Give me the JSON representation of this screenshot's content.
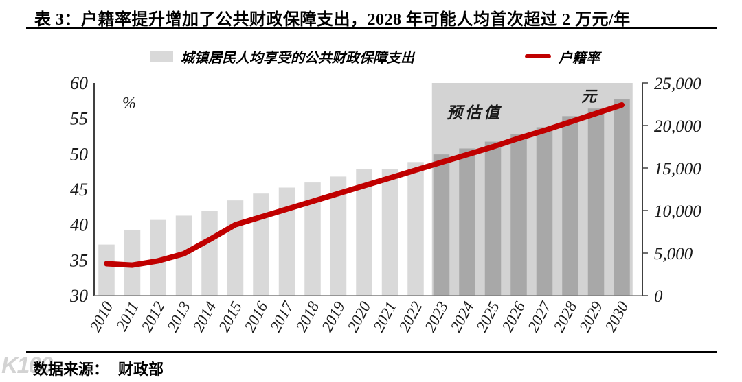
{
  "page": {
    "title": "表 3：户籍率提升增加了公共财政保障支出，2028 年可能人均首次超过 2 万元/年"
  },
  "legend": {
    "bar_label": "城镇居民人均享受的公共财政保障支出",
    "line_label": "户籍率"
  },
  "annotations": {
    "left_unit": "%",
    "right_unit": "元",
    "forecast_label": "预估值"
  },
  "footer": {
    "source_label": "数据来源：",
    "source_value": "财政部"
  },
  "watermark": {
    "logo": "K100"
  },
  "chart_data": {
    "type": "bar",
    "title": "表 3：户籍率提升增加了公共财政保障支出，2028 年可能人均首次超过 2 万元/年",
    "categories": [
      "2010",
      "2011",
      "2012",
      "2013",
      "2014",
      "2015",
      "2016",
      "2017",
      "2018",
      "2019",
      "2020",
      "2021",
      "2022",
      "2023",
      "2024",
      "2025",
      "2026",
      "2027",
      "2028",
      "2029",
      "2030"
    ],
    "series": [
      {
        "name": "城镇居民人均享受的公共财政保障支出",
        "type": "bar",
        "axis": "right",
        "unit": "元",
        "values": [
          6000,
          7700,
          8900,
          9400,
          10000,
          11200,
          12000,
          12700,
          13300,
          14000,
          14900,
          14900,
          15700,
          16600,
          17300,
          18100,
          19000,
          19800,
          21100,
          22000,
          23100
        ]
      },
      {
        "name": "户籍率",
        "type": "line",
        "axis": "left",
        "unit": "%",
        "values": [
          34.5,
          34.3,
          34.9,
          35.9,
          37.9,
          40.0,
          41.1,
          42.2,
          43.3,
          44.4,
          45.5,
          46.6,
          47.7,
          48.8,
          49.9,
          51.0,
          52.2,
          53.3,
          54.5,
          55.7,
          56.9
        ]
      }
    ],
    "left_axis": {
      "unit": "%",
      "min": 30,
      "max": 60,
      "ticks": [
        30,
        35,
        40,
        45,
        50,
        55,
        60
      ]
    },
    "right_axis": {
      "unit": "元",
      "min": 0,
      "max": 25000,
      "ticks": [
        0,
        5000,
        10000,
        15000,
        20000,
        25000
      ]
    },
    "forecast": {
      "label": "预估值",
      "start_category": "2023"
    },
    "grid": false,
    "legend_position": "top",
    "colors": {
      "bar": "#d9d9d9",
      "bar_forecast": "#a8a8a8",
      "forecast_bg": "#d3d3d3",
      "line": "#c00000"
    }
  }
}
